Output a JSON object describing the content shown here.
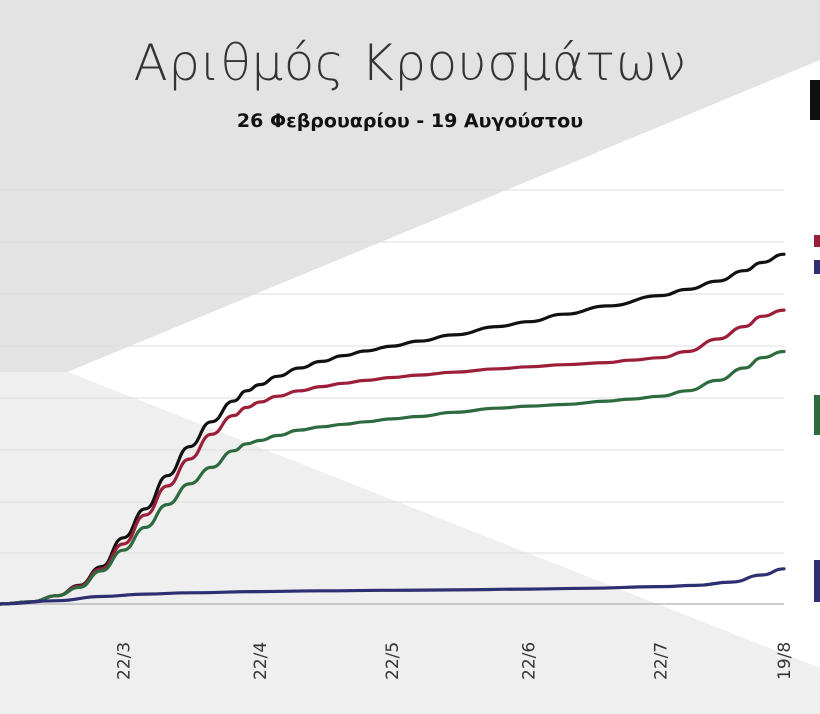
{
  "chart_data": {
    "type": "line",
    "title": "Αριθμός Κρουσμάτων",
    "subtitle": "26 Φεβρουαρίου - 19 Αυγούστου",
    "xlabel": "",
    "ylabel": "",
    "x_ticks": [
      "22/3",
      "22/4",
      "22/5",
      "22/6",
      "22/7",
      "19/8"
    ],
    "x_tick_days": [
      25,
      56,
      86,
      117,
      147,
      175
    ],
    "x_range_days": [
      -3,
      175
    ],
    "y_range_index": [
      0,
      100
    ],
    "grid": true,
    "y_values_note": "y axis tick labels not visible; values are relative index (0-100) of plot height",
    "series": [
      {
        "color": "#111111",
        "points": [
          [
            -3,
            0
          ],
          [
            4,
            0.5
          ],
          [
            10,
            2
          ],
          [
            15,
            4.5
          ],
          [
            20,
            9
          ],
          [
            25,
            16
          ],
          [
            30,
            23
          ],
          [
            35,
            31
          ],
          [
            40,
            38
          ],
          [
            45,
            44
          ],
          [
            50,
            49
          ],
          [
            53,
            51.5
          ],
          [
            56,
            53
          ],
          [
            60,
            55
          ],
          [
            65,
            57
          ],
          [
            70,
            58.6
          ],
          [
            75,
            60
          ],
          [
            80,
            61.1
          ],
          [
            86,
            62.3
          ],
          [
            92,
            63.5
          ],
          [
            100,
            65
          ],
          [
            110,
            67
          ],
          [
            117,
            68.2
          ],
          [
            125,
            70
          ],
          [
            135,
            72
          ],
          [
            147,
            74.5
          ],
          [
            153,
            76
          ],
          [
            160,
            78
          ],
          [
            166,
            80.5
          ],
          [
            170,
            82.5
          ],
          [
            175,
            84.5
          ]
        ]
      },
      {
        "color": "#9c1f3a",
        "points": [
          [
            -3,
            0
          ],
          [
            4,
            0.5
          ],
          [
            10,
            2
          ],
          [
            15,
            4.3
          ],
          [
            20,
            8.5
          ],
          [
            25,
            14.5
          ],
          [
            30,
            21.5
          ],
          [
            35,
            28.5
          ],
          [
            40,
            35
          ],
          [
            45,
            41
          ],
          [
            50,
            45.5
          ],
          [
            53,
            47.5
          ],
          [
            56,
            48.8
          ],
          [
            60,
            50.2
          ],
          [
            65,
            51.5
          ],
          [
            70,
            52.5
          ],
          [
            75,
            53.3
          ],
          [
            80,
            54
          ],
          [
            86,
            54.7
          ],
          [
            92,
            55.3
          ],
          [
            100,
            56
          ],
          [
            110,
            56.8
          ],
          [
            117,
            57.3
          ],
          [
            125,
            57.8
          ],
          [
            135,
            58.3
          ],
          [
            140,
            58.9
          ],
          [
            147,
            59.5
          ],
          [
            153,
            61
          ],
          [
            160,
            64
          ],
          [
            166,
            67
          ],
          [
            170,
            69.5
          ],
          [
            175,
            71
          ]
        ]
      },
      {
        "color": "#2d6a3e",
        "points": [
          [
            -3,
            0
          ],
          [
            4,
            0.5
          ],
          [
            10,
            2
          ],
          [
            15,
            4
          ],
          [
            20,
            8
          ],
          [
            25,
            13
          ],
          [
            30,
            18.5
          ],
          [
            35,
            24
          ],
          [
            40,
            29
          ],
          [
            45,
            33
          ],
          [
            50,
            37
          ],
          [
            53,
            38.7
          ],
          [
            56,
            39.5
          ],
          [
            60,
            40.7
          ],
          [
            65,
            42
          ],
          [
            70,
            42.8
          ],
          [
            75,
            43.4
          ],
          [
            80,
            44
          ],
          [
            86,
            44.7
          ],
          [
            92,
            45.3
          ],
          [
            100,
            46.3
          ],
          [
            110,
            47.3
          ],
          [
            117,
            47.8
          ],
          [
            125,
            48.2
          ],
          [
            135,
            49
          ],
          [
            140,
            49.5
          ],
          [
            147,
            50.2
          ],
          [
            153,
            51.5
          ],
          [
            160,
            54
          ],
          [
            166,
            57
          ],
          [
            170,
            59.5
          ],
          [
            175,
            61
          ]
        ]
      },
      {
        "color": "#2d2f73",
        "points": [
          [
            -3,
            0
          ],
          [
            10,
            0.8
          ],
          [
            20,
            1.8
          ],
          [
            30,
            2.4
          ],
          [
            40,
            2.7
          ],
          [
            56,
            3
          ],
          [
            70,
            3.2
          ],
          [
            86,
            3.3
          ],
          [
            100,
            3.4
          ],
          [
            117,
            3.6
          ],
          [
            130,
            3.8
          ],
          [
            147,
            4.2
          ],
          [
            155,
            4.5
          ],
          [
            163,
            5.3
          ],
          [
            170,
            7
          ],
          [
            175,
            8.5
          ]
        ]
      }
    ]
  }
}
